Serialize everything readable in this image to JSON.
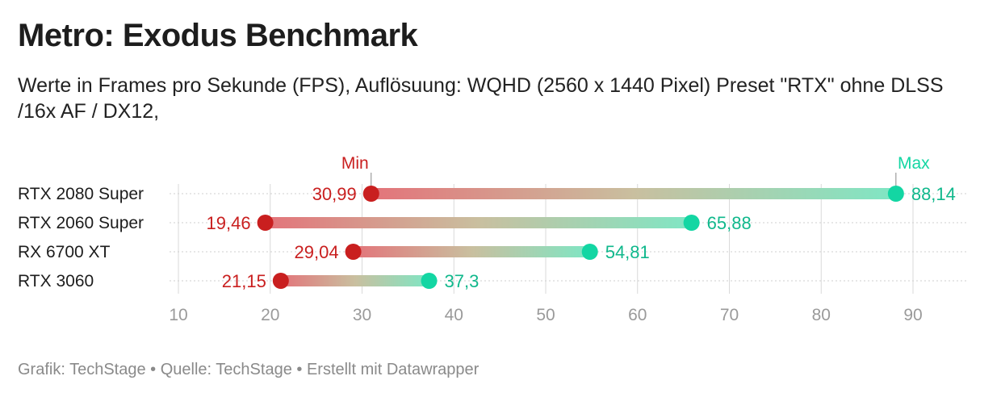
{
  "title": "Metro: Exodus Benchmark",
  "subtitle": "Werte in Frames pro Sekunde (FPS), Auflösuung: WQHD (2560 x 1440 Pixel) Preset \"RTX\" ohne DLSS /16x AF / DX12,",
  "footer": {
    "grafik": "Grafik: TechStage",
    "quelle": "Quelle: TechStage",
    "erstellt": "Erstellt mit Datawrapper",
    "separator": " • "
  },
  "colors": {
    "min": "#c91f1f",
    "max": "#13d6a3",
    "grid": "#d9d9d9",
    "axis_text": "#9a9a9a"
  },
  "chart_data": {
    "type": "range-dot",
    "categories": [
      "RTX 2080 Super",
      "RTX 2060 Super",
      "RX 6700 XT",
      "RTX 3060"
    ],
    "series": [
      {
        "name": "Min",
        "values": [
          30.99,
          19.46,
          29.04,
          21.15
        ],
        "labels": [
          "30,99",
          "19,46",
          "29,04",
          "21,15"
        ]
      },
      {
        "name": "Max",
        "values": [
          88.14,
          65.88,
          54.81,
          37.3
        ],
        "labels": [
          "88,14",
          "65,88",
          "54,81",
          "37,3"
        ]
      }
    ],
    "x_ticks": [
      10,
      20,
      30,
      40,
      50,
      60,
      70,
      80,
      90
    ],
    "xlim": [
      10,
      95
    ],
    "grid": true
  }
}
